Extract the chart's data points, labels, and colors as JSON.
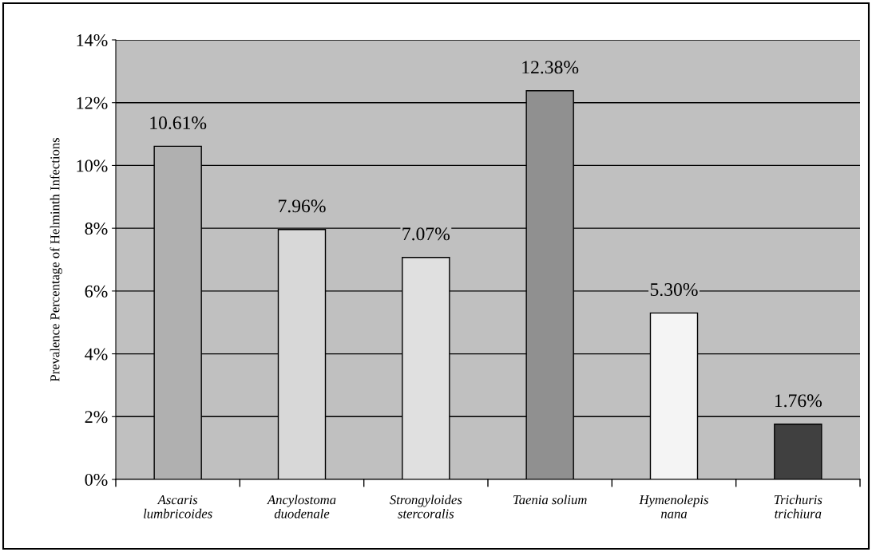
{
  "chart_data": {
    "type": "bar",
    "ylabel": "Prevalence Percentage of Helminth Infections",
    "categories": [
      "Ascaris\nlumbricoides",
      "Ancylostoma\nduodenale",
      "Strongyloides\nstercoralis",
      "Taenia solium",
      "Hymenolepis\nnana",
      "Trichuris\ntrichiura"
    ],
    "values": [
      10.61,
      7.96,
      7.07,
      12.38,
      5.3,
      1.76
    ],
    "value_labels": [
      "10.61%",
      "7.96%",
      "7.07%",
      "12.38%",
      "5.30%",
      "1.76%"
    ],
    "colors": [
      "#b0b0b0",
      "#d8d8d8",
      "#e0e0e0",
      "#909090",
      "#f4f4f4",
      "#404040"
    ],
    "ylim": [
      0,
      14
    ],
    "yticks": [
      {
        "value": 0,
        "label": "0%"
      },
      {
        "value": 2,
        "label": "2%"
      },
      {
        "value": 4,
        "label": "4%"
      },
      {
        "value": 6,
        "label": "6%"
      },
      {
        "value": 8,
        "label": "8%"
      },
      {
        "value": 10,
        "label": "10%"
      },
      {
        "value": 12,
        "label": "12%"
      },
      {
        "value": 14,
        "label": "14%"
      }
    ],
    "grid": "y"
  }
}
